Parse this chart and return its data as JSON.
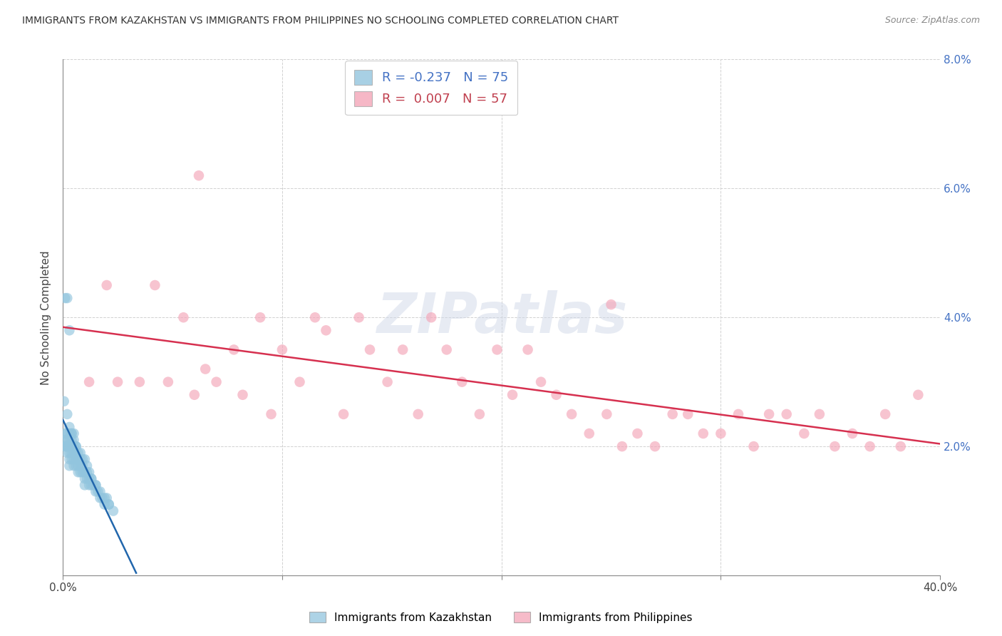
{
  "title": "IMMIGRANTS FROM KAZAKHSTAN VS IMMIGRANTS FROM PHILIPPINES NO SCHOOLING COMPLETED CORRELATION CHART",
  "source": "Source: ZipAtlas.com",
  "ylabel": "No Schooling Completed",
  "xlim": [
    0.0,
    0.4
  ],
  "ylim": [
    0.0,
    0.08
  ],
  "xticks": [
    0.0,
    0.1,
    0.2,
    0.3,
    0.4
  ],
  "xtick_labels": [
    "0.0%",
    "",
    "",
    "",
    "40.0%"
  ],
  "yticks": [
    0.0,
    0.02,
    0.04,
    0.06,
    0.08
  ],
  "ytick_labels_right": [
    "",
    "2.0%",
    "4.0%",
    "6.0%",
    "8.0%"
  ],
  "legend_r_kaz": "-0.237",
  "legend_n_kaz": "75",
  "legend_r_phil": "0.007",
  "legend_n_phil": "57",
  "kaz_color": "#92c5de",
  "phil_color": "#f4a5b8",
  "kaz_line_color": "#2166ac",
  "phil_line_color": "#d6304f",
  "background_color": "#ffffff",
  "grid_color": "#cccccc",
  "watermark": "ZIPatlas",
  "kaz_x": [
    0.0005,
    0.001,
    0.001,
    0.001,
    0.0015,
    0.0015,
    0.002,
    0.002,
    0.002,
    0.0025,
    0.003,
    0.003,
    0.003,
    0.003,
    0.003,
    0.004,
    0.004,
    0.004,
    0.004,
    0.005,
    0.005,
    0.005,
    0.005,
    0.005,
    0.006,
    0.006,
    0.006,
    0.006,
    0.007,
    0.007,
    0.007,
    0.008,
    0.008,
    0.008,
    0.009,
    0.009,
    0.01,
    0.01,
    0.01,
    0.011,
    0.011,
    0.012,
    0.012,
    0.013,
    0.013,
    0.014,
    0.015,
    0.015,
    0.016,
    0.017,
    0.018,
    0.019,
    0.02,
    0.021,
    0.002,
    0.003,
    0.004,
    0.004,
    0.005,
    0.006,
    0.007,
    0.008,
    0.009,
    0.01,
    0.011,
    0.012,
    0.013,
    0.015,
    0.017,
    0.019,
    0.021,
    0.023,
    0.001,
    0.002,
    0.003
  ],
  "kaz_y": [
    0.027,
    0.022,
    0.021,
    0.02,
    0.021,
    0.02,
    0.022,
    0.02,
    0.019,
    0.02,
    0.022,
    0.021,
    0.019,
    0.018,
    0.017,
    0.022,
    0.02,
    0.019,
    0.018,
    0.022,
    0.02,
    0.019,
    0.018,
    0.017,
    0.02,
    0.019,
    0.018,
    0.017,
    0.018,
    0.017,
    0.016,
    0.018,
    0.017,
    0.016,
    0.017,
    0.016,
    0.016,
    0.015,
    0.014,
    0.016,
    0.015,
    0.015,
    0.014,
    0.015,
    0.014,
    0.014,
    0.013,
    0.014,
    0.013,
    0.012,
    0.012,
    0.011,
    0.012,
    0.011,
    0.025,
    0.023,
    0.022,
    0.021,
    0.021,
    0.02,
    0.019,
    0.019,
    0.018,
    0.018,
    0.017,
    0.016,
    0.015,
    0.014,
    0.013,
    0.012,
    0.011,
    0.01,
    0.043,
    0.043,
    0.038
  ],
  "phil_x": [
    0.012,
    0.02,
    0.025,
    0.035,
    0.042,
    0.048,
    0.055,
    0.06,
    0.065,
    0.07,
    0.078,
    0.082,
    0.09,
    0.095,
    0.1,
    0.108,
    0.115,
    0.12,
    0.128,
    0.135,
    0.14,
    0.148,
    0.155,
    0.162,
    0.168,
    0.175,
    0.182,
    0.19,
    0.198,
    0.205,
    0.212,
    0.218,
    0.225,
    0.232,
    0.24,
    0.248,
    0.255,
    0.262,
    0.27,
    0.278,
    0.285,
    0.292,
    0.3,
    0.308,
    0.315,
    0.322,
    0.33,
    0.338,
    0.345,
    0.352,
    0.36,
    0.368,
    0.375,
    0.382,
    0.39,
    0.062,
    0.25
  ],
  "phil_y": [
    0.03,
    0.045,
    0.03,
    0.03,
    0.045,
    0.03,
    0.04,
    0.028,
    0.032,
    0.03,
    0.035,
    0.028,
    0.04,
    0.025,
    0.035,
    0.03,
    0.04,
    0.038,
    0.025,
    0.04,
    0.035,
    0.03,
    0.035,
    0.025,
    0.04,
    0.035,
    0.03,
    0.025,
    0.035,
    0.028,
    0.035,
    0.03,
    0.028,
    0.025,
    0.022,
    0.025,
    0.02,
    0.022,
    0.02,
    0.025,
    0.025,
    0.022,
    0.022,
    0.025,
    0.02,
    0.025,
    0.025,
    0.022,
    0.025,
    0.02,
    0.022,
    0.02,
    0.025,
    0.02,
    0.028,
    0.062,
    0.042
  ]
}
